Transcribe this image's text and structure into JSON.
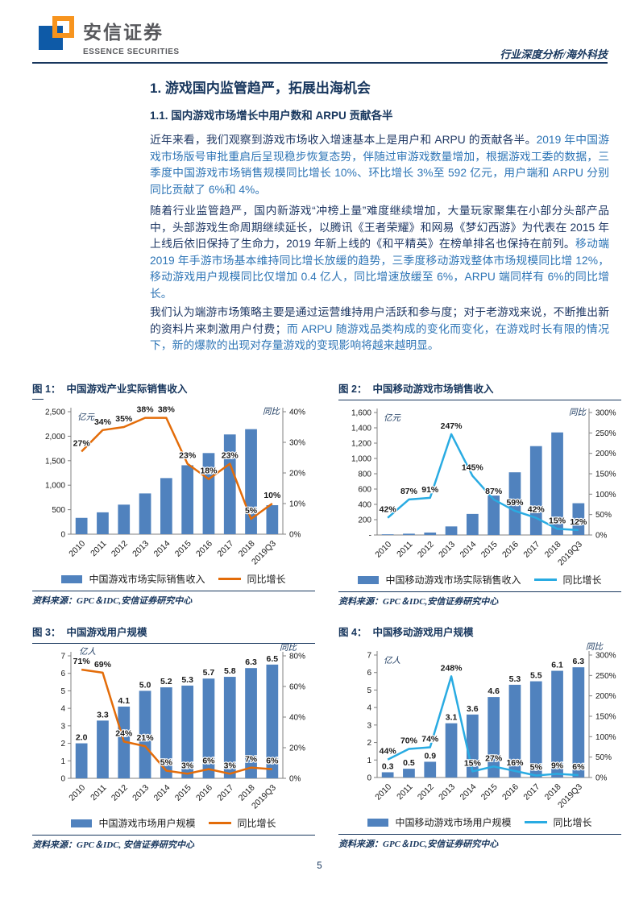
{
  "header": {
    "brand_cn": "安信证券",
    "brand_en": "ESSENCE SECURITIES",
    "slogan": "行业深度分析/海外科技"
  },
  "section": {
    "h1": "1. 游戏国内监管趋严，拓展出海机会",
    "h2": "1.1. 国内游戏市场增长中用户数和 ARPU 贡献各半"
  },
  "paragraphs": [
    {
      "plain": "近年来看，我们观察到游戏市场收入增速基本上是用户和 ARPU 的贡献各半。",
      "highlight": "2019 年中国游戏市场版号审批重启后呈现稳步恢复态势，伴随过审游戏数量增加，根据游戏工委的数据，三季度中国游戏市场销售规模同比增长 10%、环比增长 3%至 592 亿元，用户端和 ARPU 分别同比贡献了 6%和 4%。"
    },
    {
      "plain": "随着行业监管趋严，国内新游戏“冲榜上量”难度继续增加，大量玩家聚集在小部分头部产品中，头部游戏生命周期继续延长，以腾讯《王者荣耀》和网易《梦幻西游》为代表在 2015 年上线后依旧保持了生命力，2019 年新上线的《和平精英》在榜单排名也保持在前列。",
      "highlight": "移动端 2019 年手游市场基本维持同比增长放缓的趋势，三季度移动游戏整体市场规模同比增 12%，移动游戏用户规模同比仅增加 0.4 亿人，同比增速放缓至 6%，ARPU 端同样有 6%的同比增长。"
    },
    {
      "plain": "我们认为端游市场策略主要是通过运营维持用户活跃和参与度；对于老游戏来说，不断推出新的资料片来刺激用户付费；",
      "highlight": "而 ARPU 随游戏品类构成的变化而变化，在游戏时长有限的情况下，新的爆款的出现对存量游戏的变现影响将越来越明显。"
    }
  ],
  "figures": [
    {
      "label": "图 1：",
      "title": "中国游戏产业实际销售收入",
      "legend_bar": "中国游戏市场实际销售收入",
      "legend_line": "同比增长",
      "source": "资料来源：GPC＆IDC,安信证券研究中心"
    },
    {
      "label": "图 2：",
      "title": "中国移动游戏市场销售收入",
      "legend_bar": "中国移动游戏市场实际销售收入",
      "legend_line": "同比增长",
      "source": "资料来源：GPC＆IDC,安信证券研究中心"
    },
    {
      "label": "图 3：",
      "title": "中国游戏用户规模",
      "legend_bar": "中国游戏市场用户规模",
      "legend_line": "同比增长",
      "source": "资料来源：GPC＆IDC, 安信证券研究中心"
    },
    {
      "label": "图 4：",
      "title": "中国移动游戏用户规模",
      "legend_bar": "中国移动游戏市场用户规模",
      "legend_line": "同比增长",
      "source": "资料来源：GPC＆IDC,安信证券研究中心"
    }
  ],
  "chart_data": [
    {
      "type": "bar+line",
      "title": "中国游戏产业实际销售收入",
      "categories": [
        "2010",
        "2011",
        "2012",
        "2013",
        "2014",
        "2015",
        "2016",
        "2017",
        "2018",
        "2019Q3"
      ],
      "bars": [
        333,
        446,
        603,
        832,
        1145,
        1407,
        1656,
        2036,
        2144,
        592
      ],
      "line": [
        27,
        34,
        35,
        38,
        38,
        23,
        18,
        23,
        5,
        10
      ],
      "line_labels": [
        "27%",
        "34%",
        "35%",
        "38%",
        "38%",
        "23%",
        "18%",
        "23%",
        "5%",
        "10%"
      ],
      "bar_labels": null,
      "left_axis": {
        "min": 0,
        "max": 2500,
        "unit": "亿元",
        "unit_pos": "in",
        "ticks": [
          "0",
          "500",
          "1,000",
          "1,500",
          "2,000",
          "2,500"
        ]
      },
      "right_axis": {
        "min": 0,
        "max": 40,
        "unit": "同比",
        "unit_pos": "in",
        "ticks": [
          "0%",
          "10%",
          "20%",
          "30%",
          "40%"
        ]
      },
      "colors": {
        "bar": "#5082BE",
        "line": "#E36C09"
      }
    },
    {
      "type": "bar+line",
      "title": "中国移动游戏市场销售收入",
      "categories": [
        "2010",
        "2011",
        "2012",
        "2013",
        "2014",
        "2015",
        "2016",
        "2017",
        "2018",
        "2019Q3"
      ],
      "bars": [
        9,
        17,
        32,
        112,
        275,
        515,
        819,
        1161,
        1340,
        415
      ],
      "line": [
        42,
        87,
        91,
        247,
        145,
        87,
        59,
        42,
        15,
        12
      ],
      "line_labels": [
        "42%",
        "87%",
        "91%",
        "247%",
        "145%",
        "87%",
        "59%",
        "42%",
        "15%",
        "12%"
      ],
      "bar_labels": null,
      "left_axis": {
        "min": 0,
        "max": 1600,
        "unit": "亿元",
        "unit_pos": "in",
        "ticks": [
          "-",
          "200",
          "400",
          "600",
          "800",
          "1,000",
          "1,200",
          "1,400",
          "1,600"
        ]
      },
      "right_axis": {
        "min": 0,
        "max": 300,
        "unit": "同比",
        "unit_pos": "in",
        "ticks": [
          "0%",
          "50%",
          "100%",
          "150%",
          "200%",
          "250%",
          "300%"
        ]
      },
      "colors": {
        "bar": "#5082BE",
        "line": "#29ABE2"
      }
    },
    {
      "type": "bar+line",
      "title": "中国游戏用户规模",
      "categories": [
        "2010",
        "2011",
        "2012",
        "2013",
        "2014",
        "2015",
        "2016",
        "2017",
        "2018",
        "2019Q3"
      ],
      "bars": [
        2.0,
        3.3,
        4.1,
        5.0,
        5.2,
        5.3,
        5.7,
        5.8,
        6.3,
        6.5
      ],
      "line": [
        71,
        69,
        24,
        21,
        5,
        3,
        6,
        3,
        7,
        6
      ],
      "line_labels": [
        "71%",
        "69%",
        "24%",
        "21%",
        "5%",
        "3%",
        "6%",
        "3%",
        "7%",
        "6%"
      ],
      "bar_labels": [
        "2.0",
        "3.3",
        "4.1",
        "5.0",
        "5.2",
        "5.3",
        "5.7",
        "5.8",
        "6.3",
        "6.5"
      ],
      "left_axis": {
        "min": 0,
        "max": 7,
        "unit": "亿人",
        "unit_pos": "above",
        "ticks": [
          "0",
          "1",
          "2",
          "3",
          "4",
          "5",
          "6",
          "7"
        ]
      },
      "right_axis": {
        "min": 0,
        "max": 80,
        "unit": "同比",
        "unit_pos": "above",
        "ticks": [
          "0%",
          "20%",
          "40%",
          "60%",
          "80%"
        ]
      },
      "colors": {
        "bar": "#5082BE",
        "line": "#E36C09"
      }
    },
    {
      "type": "bar+line",
      "title": "中国移动游戏用户规模",
      "categories": [
        "2010",
        "2011",
        "2012",
        "2013",
        "2014",
        "2015",
        "2016",
        "2017",
        "2018",
        "2019Q3"
      ],
      "bars": [
        0.3,
        0.5,
        0.9,
        3.1,
        3.6,
        4.6,
        5.3,
        5.5,
        6.1,
        6.3
      ],
      "line": [
        44,
        70,
        74,
        248,
        15,
        27,
        16,
        5,
        9,
        6
      ],
      "line_labels": [
        "44%",
        "70%",
        "74%",
        "248%",
        "15%",
        "27%",
        "16%",
        "5%",
        "9%",
        "6%"
      ],
      "bar_labels": [
        "0.3",
        "0.5",
        "0.9",
        "3.1",
        "3.6",
        "4.6",
        "5.3",
        "5.5",
        "6.1",
        "6.3"
      ],
      "left_axis": {
        "min": 0,
        "max": 7,
        "unit": "亿人",
        "unit_pos": "in",
        "ticks": [
          "0",
          "1",
          "2",
          "3",
          "4",
          "5",
          "6",
          "7"
        ]
      },
      "right_axis": {
        "min": 0,
        "max": 300,
        "unit": "同比",
        "unit_pos": "above",
        "ticks": [
          "0%",
          "50%",
          "100%",
          "150%",
          "200%",
          "250%",
          "300%"
        ]
      },
      "colors": {
        "bar": "#5082BE",
        "line": "#29ABE2"
      }
    }
  ],
  "page_number": "5",
  "colors": {
    "navy": "#17365D",
    "body_text": "#1F3864",
    "highlight_text": "#2E75B6",
    "bar_blue": "#5082BE",
    "orange": "#E36C09",
    "cyan": "#29ABE2",
    "logo_blue": "#0E5AA7",
    "logo_orange": "#F7941E"
  }
}
